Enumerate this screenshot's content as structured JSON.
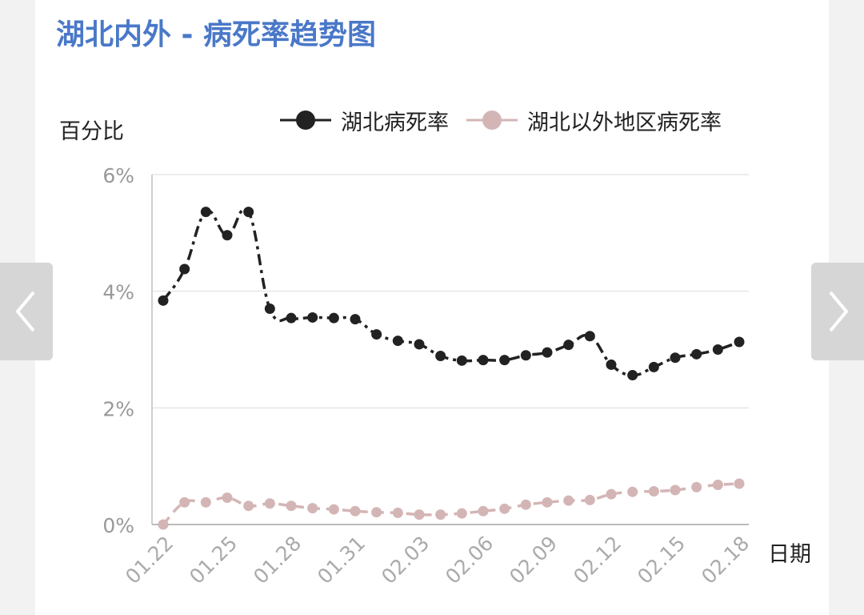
{
  "title": "湖北内外 - 病死率趋势图",
  "icons": {
    "prev": "chevron-left-icon",
    "next": "chevron-right-icon"
  },
  "colors": {
    "title": "#4a78c8",
    "hubei": "#222222",
    "outside": "#d4b5b5",
    "background": "#f2f2f2"
  },
  "chart_data": {
    "type": "line",
    "ylabel": "百分比",
    "xlabel": "日期",
    "ylim": [
      0,
      6
    ],
    "yticks": [
      "0%",
      "2%",
      "4%",
      "6%"
    ],
    "grid": true,
    "legend_position": "top-right",
    "x_tick_labels": [
      "01.22",
      "01.25",
      "01.28",
      "01.31",
      "02.03",
      "02.06",
      "02.09",
      "02.12",
      "02.15",
      "02.18"
    ],
    "x": [
      "01.22",
      "01.23",
      "01.24",
      "01.25",
      "01.26",
      "01.27",
      "01.28",
      "01.29",
      "01.30",
      "01.31",
      "02.01",
      "02.02",
      "02.03",
      "02.04",
      "02.05",
      "02.06",
      "02.07",
      "02.08",
      "02.09",
      "02.10",
      "02.11",
      "02.12",
      "02.13",
      "02.14",
      "02.15",
      "02.16",
      "02.17",
      "02.18"
    ],
    "series": [
      {
        "name": "湖北病死率",
        "color": "#222222",
        "style": "dash-dot",
        "values": [
          3.84,
          4.38,
          5.36,
          4.96,
          5.36,
          3.7,
          3.54,
          3.55,
          3.54,
          3.52,
          3.26,
          3.15,
          3.09,
          2.89,
          2.81,
          2.82,
          2.82,
          2.9,
          2.95,
          3.08,
          3.23,
          2.74,
          2.56,
          2.7,
          2.86,
          2.92,
          3.0,
          3.13
        ]
      },
      {
        "name": "湖北以外地区病死率",
        "color": "#d4b5b5",
        "style": "dash",
        "values": [
          0.0,
          0.38,
          0.38,
          0.46,
          0.32,
          0.36,
          0.32,
          0.28,
          0.26,
          0.23,
          0.21,
          0.2,
          0.17,
          0.17,
          0.19,
          0.23,
          0.27,
          0.34,
          0.38,
          0.41,
          0.42,
          0.52,
          0.56,
          0.57,
          0.59,
          0.64,
          0.68,
          0.7
        ]
      }
    ]
  }
}
